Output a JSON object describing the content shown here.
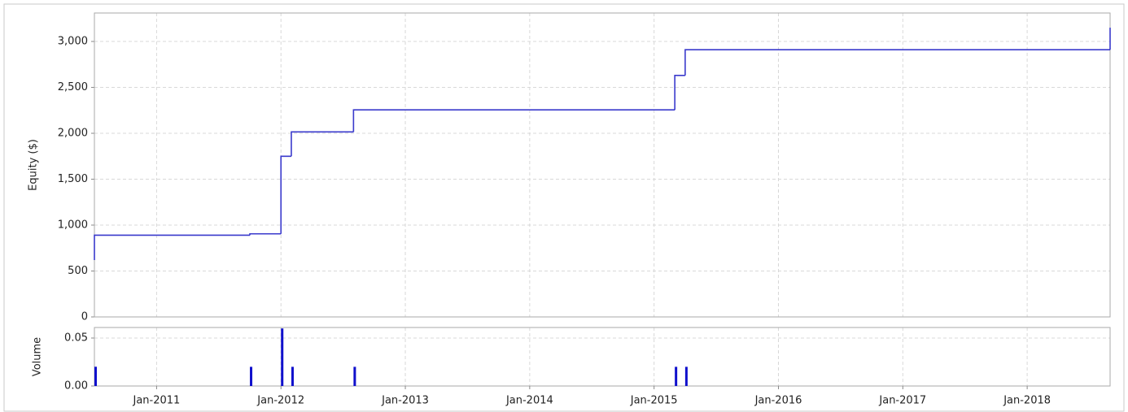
{
  "chart_data": [
    {
      "type": "line",
      "step": true,
      "y_label": "Equity ($)",
      "x": [
        "2010-07",
        "2010-07",
        "2011-10",
        "2012-01",
        "2012-02",
        "2012-08",
        "2015-03",
        "2015-04",
        "2018-09"
      ],
      "values": [
        620,
        890,
        905,
        1750,
        2015,
        2255,
        2630,
        2910,
        3150
      ],
      "color": "#3a3acc",
      "ylim": [
        0,
        3310
      ],
      "yticks": [
        0,
        500,
        {
          "value": 1000,
          "label": "1,000"
        },
        {
          "value": 1500,
          "label": "1,500"
        },
        {
          "value": 2000,
          "label": "2,000"
        },
        {
          "value": 2500,
          "label": "2,500"
        },
        {
          "value": 3000,
          "label": "3,000"
        }
      ],
      "grid": true
    },
    {
      "type": "bar",
      "y_label": "Volume",
      "x": [
        "2010-07",
        "2010-07",
        "2011-10",
        "2012-01",
        "2012-02",
        "2012-08",
        "2015-03",
        "2015-04"
      ],
      "values": [
        0.02,
        0.02,
        0.02,
        0.06,
        0.02,
        0.02,
        0.02,
        0.02
      ],
      "color": "#1010cc",
      "ylim": [
        0,
        0.061
      ],
      "yticks": [
        {
          "value": 0,
          "label": "0.00"
        },
        {
          "value": 0.05,
          "label": "0.05"
        }
      ],
      "xlim": [
        "2010-07",
        "2018-09"
      ],
      "xticks": [
        {
          "value": "2011-01",
          "label": "Jan-2011"
        },
        {
          "value": "2012-01",
          "label": "Jan-2012"
        },
        {
          "value": "2013-01",
          "label": "Jan-2013"
        },
        {
          "value": "2014-01",
          "label": "Jan-2014"
        },
        {
          "value": "2015-01",
          "label": "Jan-2015"
        },
        {
          "value": "2016-01",
          "label": "Jan-2016"
        },
        {
          "value": "2017-01",
          "label": "Jan-2017"
        },
        {
          "value": "2018-01",
          "label": "Jan-2018"
        }
      ],
      "grid": true
    }
  ]
}
